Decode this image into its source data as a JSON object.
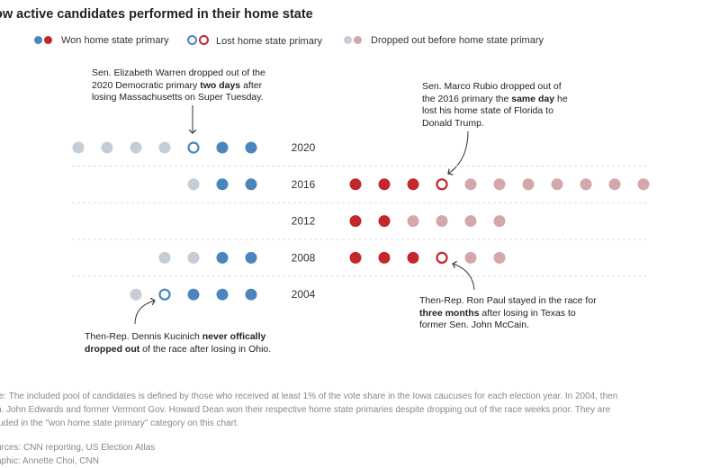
{
  "chart_data": {
    "type": "dot-plot",
    "title": "ow active candidates performed in their home state",
    "legend": [
      {
        "label": "Won home state primary",
        "status": "won"
      },
      {
        "label": "Lost home state primary",
        "status": "lost"
      },
      {
        "label": "Dropped out before home state primary",
        "status": "dropped"
      }
    ],
    "colors": {
      "dem_won": "#4a86bd",
      "dem_dropped": "#c5cdd6",
      "rep_won": "#c1272d",
      "rep_dropped": "#d4a7aa"
    },
    "rows": [
      {
        "year": "2020",
        "democrats": [
          "dropped",
          "dropped",
          "dropped",
          "dropped",
          "lost",
          "won",
          "won"
        ],
        "republicans": []
      },
      {
        "year": "2016",
        "democrats": [
          "dropped",
          "won",
          "won"
        ],
        "republicans": [
          "won",
          "won",
          "won",
          "lost",
          "dropped",
          "dropped",
          "dropped",
          "dropped",
          "dropped",
          "dropped",
          "dropped"
        ]
      },
      {
        "year": "2012",
        "democrats": [],
        "republicans": [
          "won",
          "won",
          "dropped",
          "dropped",
          "dropped",
          "dropped"
        ]
      },
      {
        "year": "2008",
        "democrats": [
          "dropped",
          "dropped",
          "won",
          "won"
        ],
        "republicans": [
          "won",
          "won",
          "won",
          "lost",
          "dropped",
          "dropped"
        ]
      },
      {
        "year": "2004",
        "democrats": [
          "dropped",
          "lost",
          "won",
          "won",
          "won"
        ],
        "republicans": []
      }
    ],
    "annotations": {
      "warren": [
        "Sen. Elizabeth Warren dropped out of the",
        "2020 Democratic primary ",
        "two days",
        " after",
        "losing Massachusetts on Super Tuesday."
      ],
      "rubio": [
        "Sen. Marco Rubio dropped out of",
        "the 2016 primary the ",
        "same day",
        " he",
        "lost his home state of Florida to",
        "Donald Trump."
      ],
      "paul": [
        "Then-Rep. Ron Paul stayed in the race for",
        "three months",
        " after losing in Texas to",
        "former Sen. John McCain."
      ],
      "kucinich": [
        "Then-Rep. Dennis Kucinich ",
        "never offically",
        "dropped out",
        " of the race after losing in Ohio."
      ]
    }
  },
  "notes": {
    "note_lines": [
      "te: The included pool of candidates is defined by those who received at least 1% of the vote share in the Iowa caucuses for each election year. In 2004, then",
      "n. John Edwards and former Vermont Gov. Howard Dean won their respective home state primaries despite dropping out of the race weeks prior. They are",
      "luded in the \"won home state primary\" category on this chart."
    ],
    "sources": "urces: CNN reporting, US Election Atlas",
    "graphic": "aphic: Annette Choi, CNN"
  }
}
